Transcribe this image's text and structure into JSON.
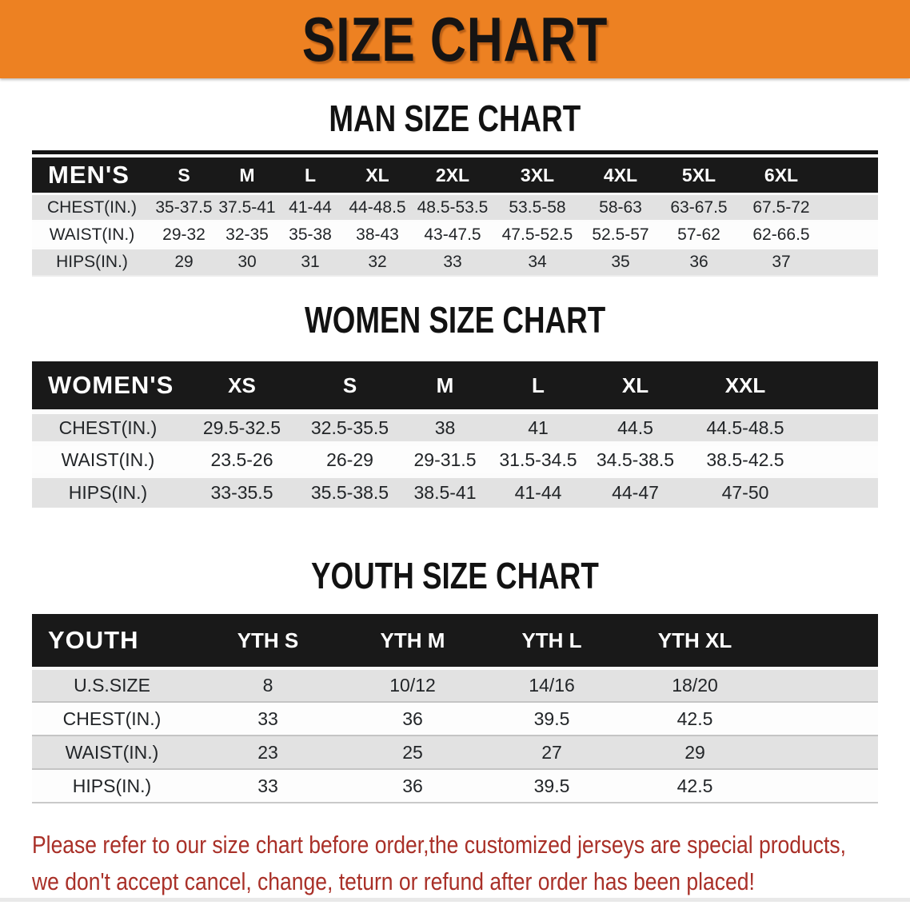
{
  "banner": {
    "title": "SIZE CHART"
  },
  "sections": [
    {
      "heading": "MAN SIZE CHART",
      "table": {
        "header_label": "MEN'S",
        "columns": [
          "S",
          "M",
          "L",
          "XL",
          "2XL",
          "3XL",
          "4XL",
          "5XL",
          "6XL"
        ],
        "rows": [
          {
            "label": "CHEST(IN.)",
            "values": [
              "35-37.5",
              "37.5-41",
              "41-44",
              "44-48.5",
              "48.5-53.5",
              "53.5-58",
              "58-63",
              "63-67.5",
              "67.5-72"
            ]
          },
          {
            "label": "WAIST(IN.)",
            "values": [
              "29-32",
              "32-35",
              "35-38",
              "38-43",
              "43-47.5",
              "47.5-52.5",
              "52.5-57",
              "57-62",
              "62-66.5"
            ]
          },
          {
            "label": "HIPS(IN.)",
            "values": [
              "29",
              "30",
              "31",
              "32",
              "33",
              "34",
              "35",
              "36",
              "37"
            ]
          }
        ]
      }
    },
    {
      "heading": "WOMEN SIZE CHART",
      "table": {
        "header_label": "WOMEN'S",
        "columns": [
          "XS",
          "S",
          "M",
          "L",
          "XL",
          "XXL"
        ],
        "rows": [
          {
            "label": "CHEST(IN.)",
            "values": [
              "29.5-32.5",
              "32.5-35.5",
              "38",
              "41",
              "44.5",
              "44.5-48.5"
            ]
          },
          {
            "label": "WAIST(IN.)",
            "values": [
              "23.5-26",
              "26-29",
              "29-31.5",
              "31.5-34.5",
              "34.5-38.5",
              "38.5-42.5"
            ]
          },
          {
            "label": "HIPS(IN.)",
            "values": [
              "33-35.5",
              "35.5-38.5",
              "38.5-41",
              "41-44",
              "44-47",
              "47-50"
            ]
          }
        ]
      }
    },
    {
      "heading": "YOUTH SIZE CHART",
      "table": {
        "header_label": "YOUTH",
        "columns": [
          "YTH S",
          "YTH M",
          "YTH L",
          "YTH XL"
        ],
        "rows": [
          {
            "label": "U.S.SIZE",
            "values": [
              "8",
              "10/12",
              "14/16",
              "18/20"
            ]
          },
          {
            "label": "CHEST(IN.)",
            "values": [
              "33",
              "36",
              "39.5",
              "42.5"
            ]
          },
          {
            "label": "WAIST(IN.)",
            "values": [
              "23",
              "25",
              "27",
              "29"
            ]
          },
          {
            "label": "HIPS(IN.)",
            "values": [
              "33",
              "36",
              "39.5",
              "42.5"
            ]
          }
        ]
      }
    }
  ],
  "footer": {
    "line1": "Please refer to our size chart before order,the customized jerseys are special products,",
    "line2": "we don't accept cancel, change, teturn or refund after order has been placed!"
  },
  "colors": {
    "banner_orange": "#ED8122",
    "header_black": "#191919",
    "row_gray": "#E2E2E2",
    "row_white": "#FDFDFD",
    "disclaimer_red": "#A93028"
  }
}
